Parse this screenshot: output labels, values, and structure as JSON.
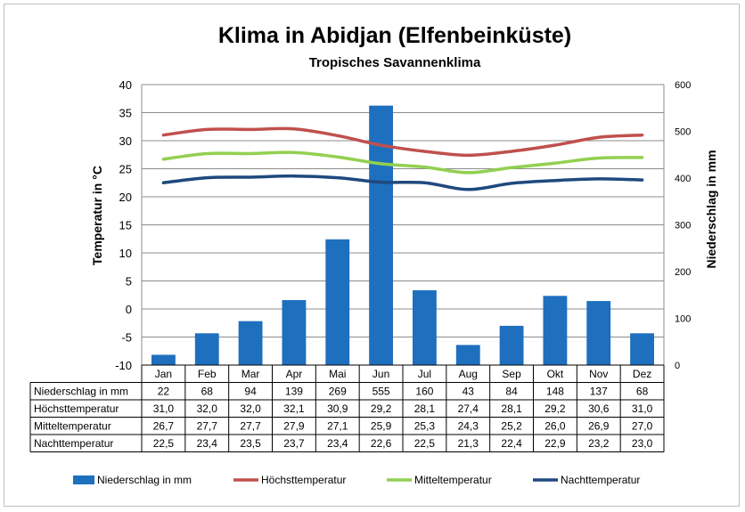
{
  "title": "Klima in Abidjan (Elfenbeinküste)",
  "subtitle": "Tropisches Savannenklima",
  "chart_data": {
    "type": "bar",
    "categories": [
      "Jan",
      "Feb",
      "Mar",
      "Apr",
      "Mai",
      "Jun",
      "Jul",
      "Aug",
      "Sep",
      "Okt",
      "Nov",
      "Dez"
    ],
    "ylabel": "Temperatur in °C",
    "y2label": "Niederschlag in mm",
    "ylim": [
      -10,
      40
    ],
    "y2lim": [
      0,
      600
    ],
    "yticks": [
      "-10",
      "-5",
      "0",
      "5",
      "10",
      "15",
      "20",
      "25",
      "30",
      "35",
      "40"
    ],
    "y2ticks": [
      "0",
      "100",
      "200",
      "300",
      "400",
      "500",
      "600"
    ],
    "grid": true,
    "legend_position": "bottom",
    "series": [
      {
        "name": "Niederschlag in mm",
        "type": "bar",
        "axis": "right",
        "color": "#1f6fbf",
        "values": [
          22,
          68,
          94,
          139,
          269,
          555,
          160,
          43,
          84,
          148,
          137,
          68
        ],
        "labels": [
          "22",
          "68",
          "94",
          "139",
          "269",
          "555",
          "160",
          "43",
          "84",
          "148",
          "137",
          "68"
        ]
      },
      {
        "name": "Höchsttemperatur",
        "type": "line",
        "axis": "left",
        "color": "#c0504d",
        "values": [
          31.0,
          32.0,
          32.0,
          32.1,
          30.9,
          29.2,
          28.1,
          27.4,
          28.1,
          29.2,
          30.6,
          31.0
        ],
        "labels": [
          "31,0",
          "32,0",
          "32,0",
          "32,1",
          "30,9",
          "29,2",
          "28,1",
          "27,4",
          "28,1",
          "29,2",
          "30,6",
          "31,0"
        ]
      },
      {
        "name": "Mitteltemperatur",
        "type": "line",
        "axis": "left",
        "color": "#92d050",
        "values": [
          26.7,
          27.7,
          27.7,
          27.9,
          27.1,
          25.9,
          25.3,
          24.3,
          25.2,
          26.0,
          26.9,
          27.0
        ],
        "labels": [
          "26,7",
          "27,7",
          "27,7",
          "27,9",
          "27,1",
          "25,9",
          "25,3",
          "24,3",
          "25,2",
          "26,0",
          "26,9",
          "27,0"
        ]
      },
      {
        "name": "Nachttemperatur",
        "type": "line",
        "axis": "left",
        "color": "#1f497d",
        "values": [
          22.5,
          23.4,
          23.5,
          23.7,
          23.4,
          22.6,
          22.5,
          21.3,
          22.4,
          22.9,
          23.2,
          23.0
        ],
        "labels": [
          "22,5",
          "23,4",
          "23,5",
          "23,7",
          "23,4",
          "22,6",
          "22,5",
          "21,3",
          "22,4",
          "22,9",
          "23,2",
          "23,0"
        ]
      }
    ]
  }
}
